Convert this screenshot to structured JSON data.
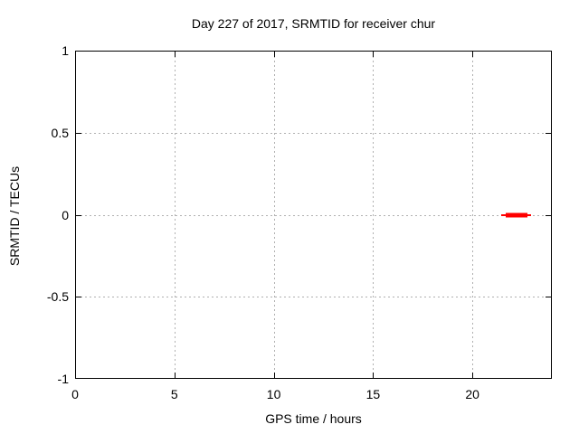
{
  "chart": {
    "title": "Day 227 of 2017, SRMTID for receiver chur",
    "xlabel": "GPS time / hours",
    "ylabel": "SRMTID / TECUs"
  },
  "chart_data": {
    "type": "line",
    "title": "Day 227 of 2017, SRMTID for receiver chur",
    "xlabel": "GPS time / hours",
    "ylabel": "SRMTID / TECUs",
    "xlim": [
      0,
      24
    ],
    "ylim": [
      -1,
      1
    ],
    "x_ticks": [
      0,
      5,
      10,
      15,
      20
    ],
    "y_ticks": [
      1,
      0.5,
      0,
      -0.5,
      -1
    ],
    "x_tick_labels": [
      "0",
      "5",
      "10",
      "15",
      "20"
    ],
    "y_tick_labels": [
      "1",
      "0.5",
      "0",
      "-0.5",
      "-1"
    ],
    "grid": "on",
    "grid_style": "dotted",
    "grid_color": "#b0b0b0",
    "border_color": "#000000",
    "background_color": "#ffffff",
    "legend": "none",
    "series": [
      {
        "name": "SRMTID",
        "color": "#ff0000",
        "style": "thick horizontal segment at constant y",
        "y": 0,
        "x_start": 21.5,
        "x_end": 23.0,
        "core_x_start": 21.7,
        "core_x_end": 22.8,
        "points": [
          {
            "x": 21.5,
            "y": 0
          },
          {
            "x": 23.0,
            "y": 0
          }
        ]
      }
    ]
  }
}
